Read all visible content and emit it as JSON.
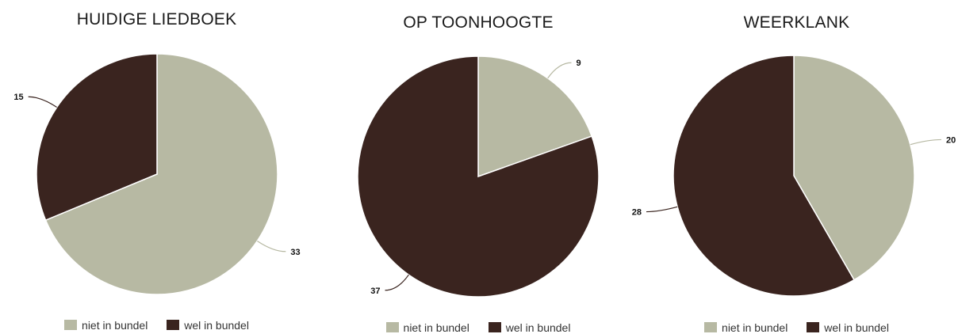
{
  "chart_data": [
    {
      "type": "pie",
      "title": "HUIDIGE LIEDBOEK",
      "categories": [
        "niet in bundel",
        "wel in bundel"
      ],
      "values": [
        33,
        15
      ],
      "colors": [
        "#b7b9a3",
        "#3a241f"
      ],
      "legend_position": "bottom"
    },
    {
      "type": "pie",
      "title": "OP TOONHOOGTE",
      "categories": [
        "niet in bundel",
        "wel in bundel"
      ],
      "values": [
        9,
        37
      ],
      "colors": [
        "#b7b9a3",
        "#3a241f"
      ],
      "legend_position": "bottom"
    },
    {
      "type": "pie",
      "title": "WEERKLANK",
      "categories": [
        "niet in bundel",
        "wel in bundel"
      ],
      "values": [
        20,
        28
      ],
      "colors": [
        "#b7b9a3",
        "#3a241f"
      ],
      "legend_position": "bottom"
    }
  ]
}
